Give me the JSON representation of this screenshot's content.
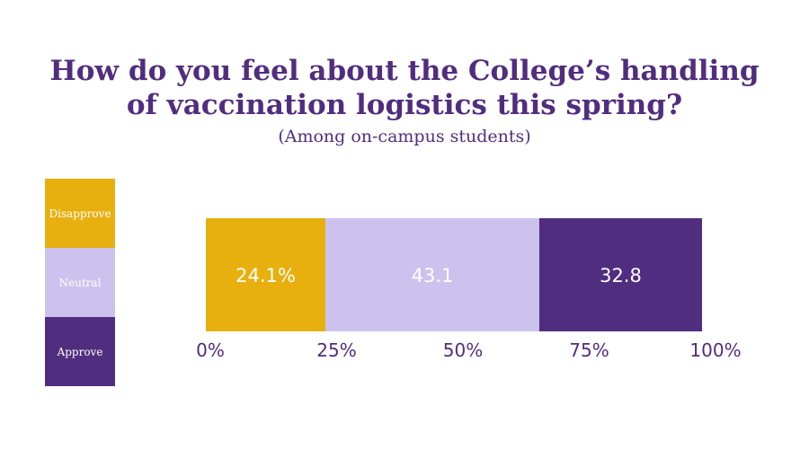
{
  "chart_data": {
    "type": "bar",
    "orientation": "horizontal-stacked-100",
    "title_lines": [
      "How do you feel about the College’s handling",
      "of vaccination logistics this spring?"
    ],
    "subtitle": "(Among on-campus students)",
    "series": [
      {
        "name": "Disapprove",
        "value": 24.1,
        "label": "24.1%",
        "color": "#e8b00f"
      },
      {
        "name": "Neutral",
        "value": 43.1,
        "label": "43.1",
        "color": "#cdc2ee"
      },
      {
        "name": "Approve",
        "value": 32.8,
        "label": "32.8",
        "color": "#512d7f"
      }
    ],
    "xlim": [
      0,
      100
    ],
    "x_ticks": [
      "0%",
      "25%",
      "50%",
      "75%",
      "100%"
    ],
    "legend_position": "left",
    "grid": false
  }
}
